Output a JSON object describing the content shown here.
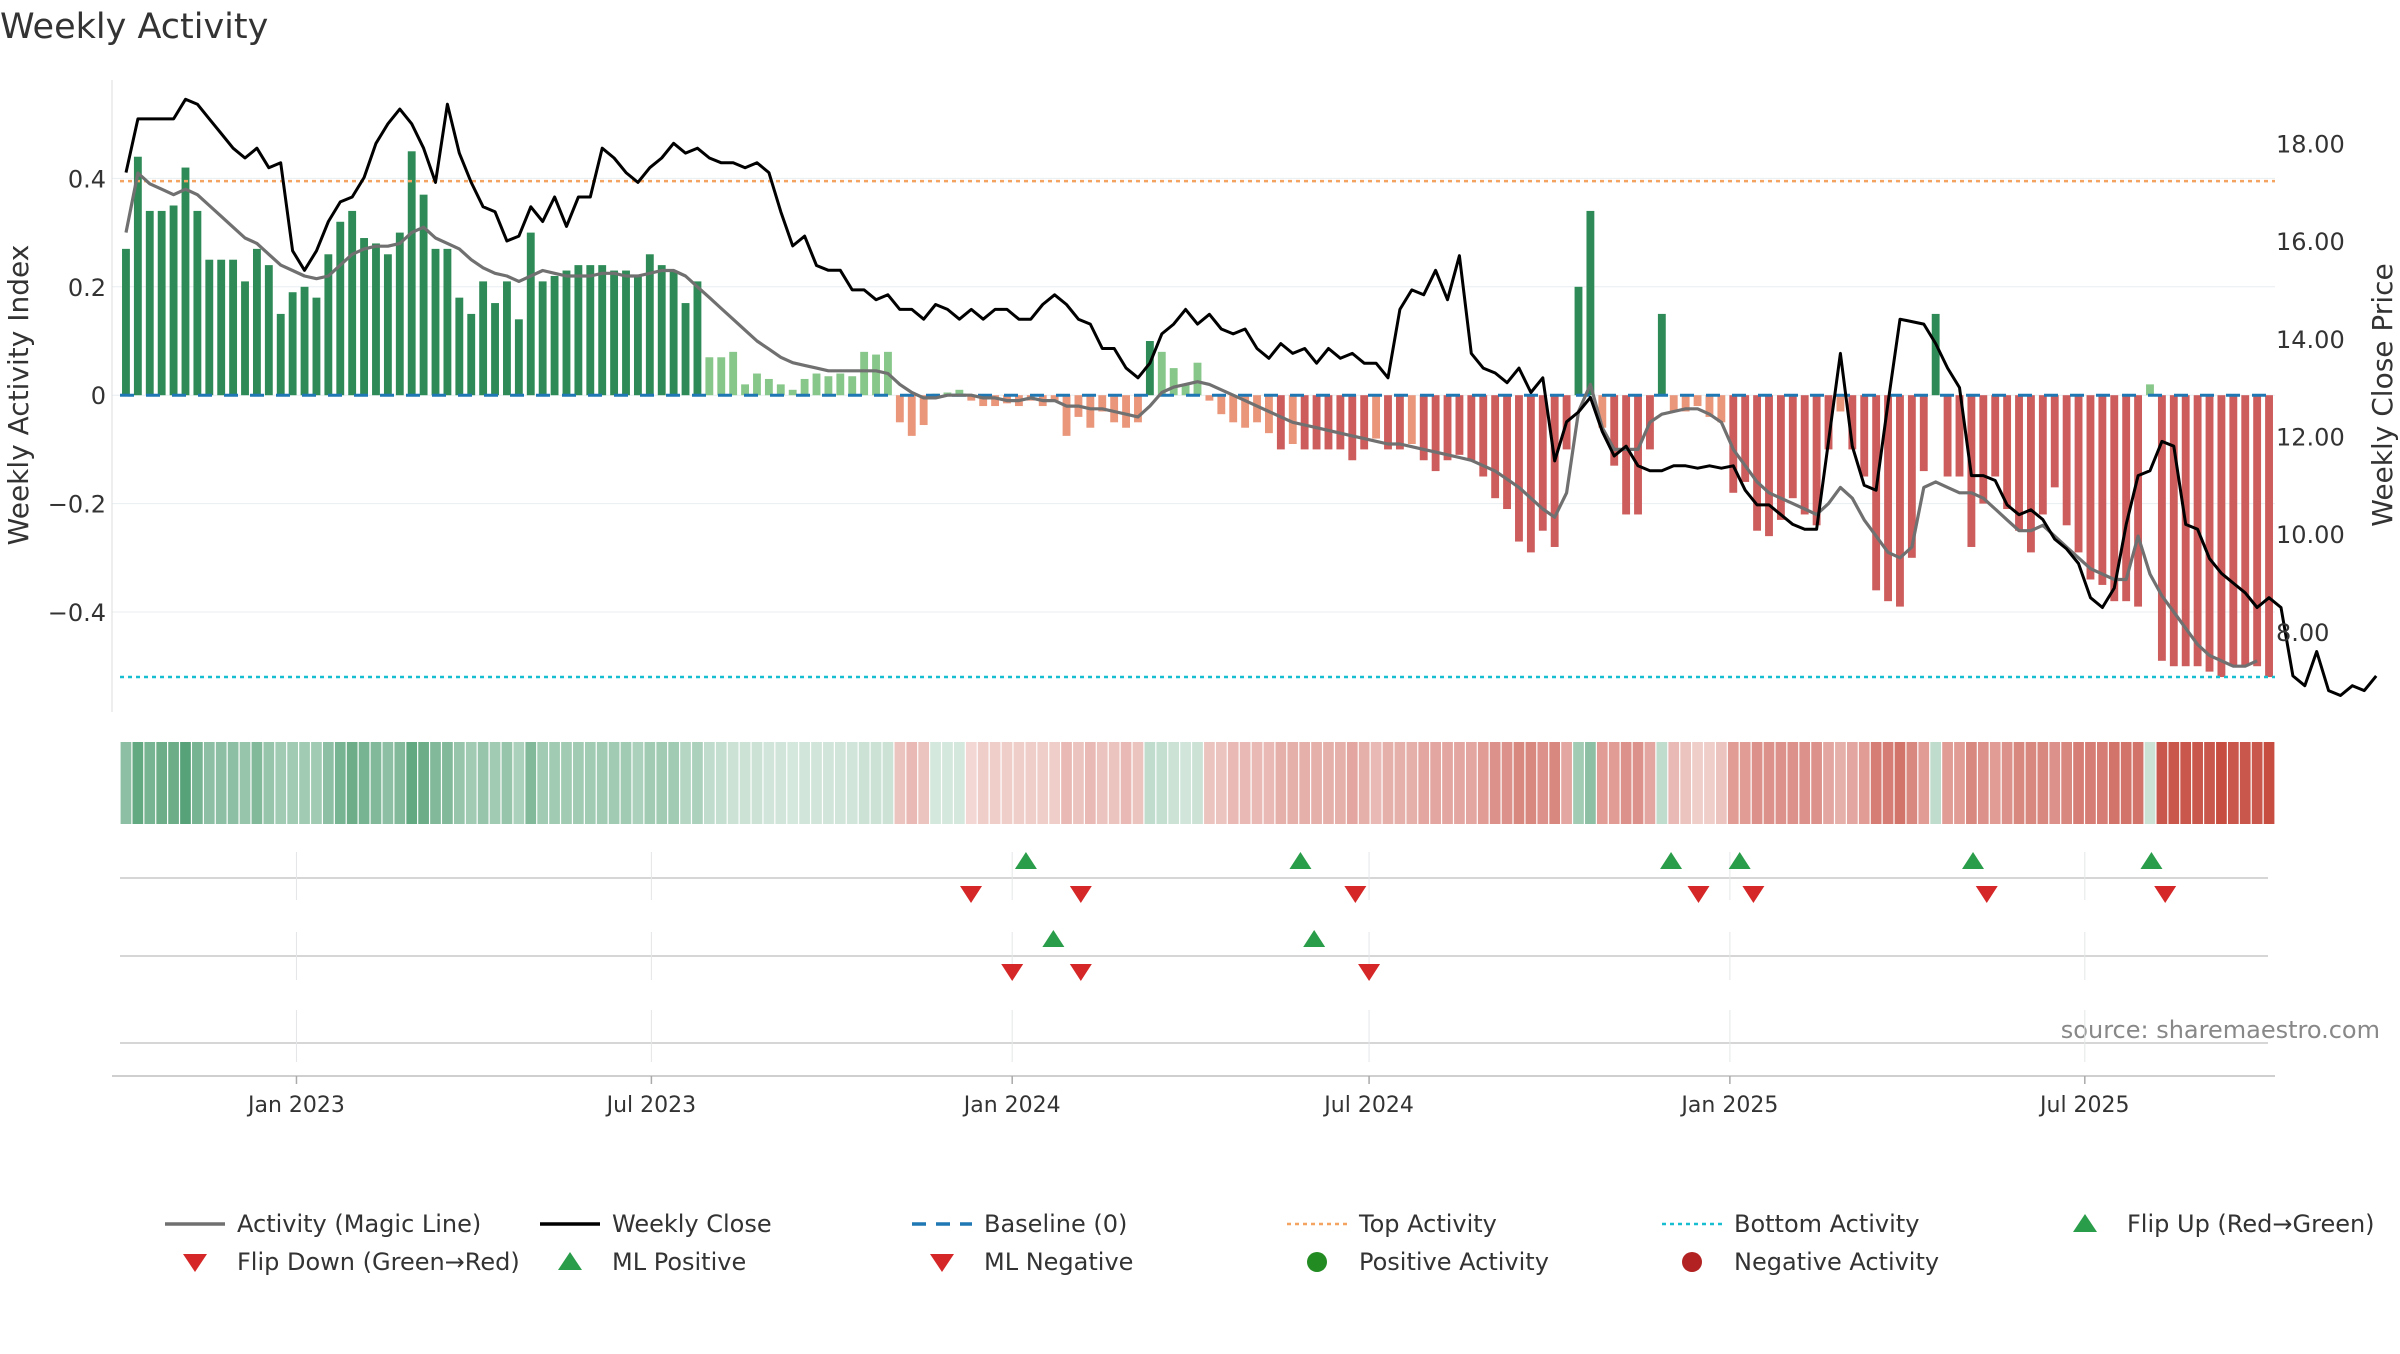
{
  "chart_data": {
    "type": "bar",
    "title": "Weekly Activity",
    "ylabel_left": "Weekly Activity Index",
    "ylabel_right": "Weekly Close Price",
    "source_note": "source: sharemaestro.com",
    "x_range": [
      "2022-10-03",
      "2025-10-06"
    ],
    "ylim_left": [
      -0.59,
      0.6
    ],
    "ylim_right": [
      6.3,
      19.5
    ],
    "left_ticks": [
      {
        "value": 0.4,
        "label": "0.4"
      },
      {
        "value": 0.2,
        "label": "0.2"
      },
      {
        "value": 0,
        "label": "0"
      },
      {
        "value": -0.2,
        "label": "−0.2"
      },
      {
        "value": -0.4,
        "label": "−0.4"
      }
    ],
    "right_ticks": [
      {
        "value": 18,
        "label": "18.00"
      },
      {
        "value": 16,
        "label": "16.00"
      },
      {
        "value": 14,
        "label": "14.00"
      },
      {
        "value": 12,
        "label": "12.00"
      },
      {
        "value": 10,
        "label": "10.00"
      },
      {
        "value": 8,
        "label": "8.00"
      }
    ],
    "x_ticks": [
      {
        "date": "2023-01-01",
        "label": "Jan 2023"
      },
      {
        "date": "2023-07-01",
        "label": "Jul 2023"
      },
      {
        "date": "2024-01-01",
        "label": "Jan 2024"
      },
      {
        "date": "2024-07-01",
        "label": "Jul 2024"
      },
      {
        "date": "2025-01-01",
        "label": "Jan 2025"
      },
      {
        "date": "2025-07-01",
        "label": "Jul 2025"
      }
    ],
    "top_activity": 0.395,
    "bottom_activity": -0.52,
    "grid": true,
    "colors": {
      "strong_positive": "#2e8b57",
      "weak_positive": "#88c78a",
      "strong_negative": "#cd5c5c",
      "weak_negative": "#e9967a",
      "magic_line": "#707070",
      "close_line": "#000000",
      "baseline": "#1f77b4",
      "top_line": "#f4a460",
      "bottom_line": "#17becf",
      "flip_up": "#2a9d4a",
      "flip_down": "#d62728",
      "positive_activity": "#228b22",
      "negative_activity": "#b22222"
    },
    "activity_values": [
      0.27,
      0.44,
      0.34,
      0.34,
      0.35,
      0.42,
      0.34,
      0.25,
      0.25,
      0.25,
      0.21,
      0.27,
      0.24,
      0.15,
      0.19,
      0.2,
      0.18,
      0.26,
      0.32,
      0.34,
      0.29,
      0.28,
      0.26,
      0.3,
      0.45,
      0.37,
      0.27,
      0.27,
      0.18,
      0.15,
      0.21,
      0.17,
      0.21,
      0.14,
      0.3,
      0.21,
      0.22,
      0.23,
      0.24,
      0.24,
      0.24,
      0.23,
      0.23,
      0.22,
      0.26,
      0.24,
      0.23,
      0.17,
      0.21,
      0.07,
      0.07,
      0.08,
      0.02,
      0.04,
      0.03,
      0.02,
      0.01,
      0.03,
      0.04,
      0.035,
      0.04,
      0.035,
      0.08,
      0.075,
      0.08,
      -0.05,
      -0.075,
      -0.055,
      0.0,
      0.005,
      0.01,
      -0.01,
      -0.02,
      -0.02,
      -0.015,
      -0.02,
      -0.01,
      -0.02,
      -0.01,
      -0.075,
      -0.04,
      -0.06,
      -0.03,
      -0.05,
      -0.06,
      -0.05,
      0.1,
      0.08,
      0.05,
      0.02,
      0.06,
      -0.01,
      -0.035,
      -0.05,
      -0.06,
      -0.05,
      -0.07,
      -0.1,
      -0.09,
      -0.1,
      -0.1,
      -0.1,
      -0.1,
      -0.12,
      -0.1,
      -0.08,
      -0.1,
      -0.1,
      -0.09,
      -0.12,
      -0.14,
      -0.12,
      -0.11,
      -0.12,
      -0.15,
      -0.19,
      -0.21,
      -0.27,
      -0.29,
      -0.25,
      -0.28,
      -0.1,
      0.2,
      0.34,
      -0.06,
      -0.13,
      -0.22,
      -0.22,
      -0.1,
      0.15,
      -0.03,
      -0.03,
      -0.02,
      -0.04,
      -0.05,
      -0.18,
      -0.16,
      -0.25,
      -0.26,
      -0.23,
      -0.19,
      -0.22,
      -0.24,
      -0.1,
      -0.03,
      -0.1,
      -0.15,
      -0.36,
      -0.38,
      -0.39,
      -0.3,
      -0.14,
      0.15,
      -0.15,
      -0.15,
      -0.28,
      -0.2,
      -0.15,
      -0.21,
      -0.25,
      -0.29,
      -0.22,
      -0.17,
      -0.24,
      -0.29,
      -0.34,
      -0.35,
      -0.38,
      -0.38,
      -0.39,
      0.02,
      -0.49,
      -0.5,
      -0.5,
      -0.5,
      -0.51,
      -0.52,
      -0.5,
      -0.5,
      -0.5,
      -0.52
    ],
    "magic_line_values": [
      0.3,
      0.41,
      0.39,
      0.38,
      0.37,
      0.38,
      0.37,
      0.35,
      0.33,
      0.31,
      0.29,
      0.28,
      0.26,
      0.24,
      0.23,
      0.22,
      0.215,
      0.22,
      0.24,
      0.26,
      0.27,
      0.275,
      0.275,
      0.28,
      0.3,
      0.31,
      0.29,
      0.28,
      0.27,
      0.25,
      0.235,
      0.225,
      0.22,
      0.21,
      0.22,
      0.23,
      0.225,
      0.22,
      0.22,
      0.22,
      0.225,
      0.225,
      0.22,
      0.22,
      0.225,
      0.23,
      0.23,
      0.22,
      0.2,
      0.18,
      0.16,
      0.14,
      0.12,
      0.1,
      0.085,
      0.07,
      0.06,
      0.055,
      0.05,
      0.045,
      0.045,
      0.045,
      0.045,
      0.045,
      0.04,
      0.02,
      0.005,
      -0.005,
      -0.005,
      0.0,
      0.0,
      0.0,
      -0.005,
      -0.005,
      -0.01,
      -0.01,
      -0.005,
      -0.01,
      -0.01,
      -0.02,
      -0.02,
      -0.025,
      -0.025,
      -0.03,
      -0.035,
      -0.04,
      -0.02,
      0.005,
      0.015,
      0.02,
      0.025,
      0.02,
      0.01,
      0.0,
      -0.01,
      -0.02,
      -0.03,
      -0.04,
      -0.05,
      -0.055,
      -0.06,
      -0.065,
      -0.07,
      -0.075,
      -0.08,
      -0.085,
      -0.09,
      -0.09,
      -0.095,
      -0.1,
      -0.105,
      -0.11,
      -0.115,
      -0.12,
      -0.13,
      -0.14,
      -0.155,
      -0.17,
      -0.19,
      -0.21,
      -0.225,
      -0.18,
      -0.03,
      0.02,
      -0.06,
      -0.1,
      -0.1,
      -0.1,
      -0.05,
      -0.035,
      -0.03,
      -0.025,
      -0.025,
      -0.035,
      -0.05,
      -0.1,
      -0.13,
      -0.16,
      -0.18,
      -0.19,
      -0.2,
      -0.21,
      -0.22,
      -0.2,
      -0.17,
      -0.19,
      -0.23,
      -0.26,
      -0.29,
      -0.3,
      -0.28,
      -0.17,
      -0.16,
      -0.17,
      -0.18,
      -0.18,
      -0.19,
      -0.21,
      -0.23,
      -0.25,
      -0.25,
      -0.24,
      -0.26,
      -0.28,
      -0.3,
      -0.32,
      -0.33,
      -0.34,
      -0.34,
      -0.26,
      -0.33,
      -0.37,
      -0.4,
      -0.43,
      -0.46,
      -0.48,
      -0.49,
      -0.5,
      -0.5,
      -0.49
    ],
    "close_values": [
      17.4,
      18.5,
      18.5,
      18.5,
      18.5,
      18.9,
      18.8,
      18.5,
      18.2,
      17.9,
      17.7,
      17.9,
      17.5,
      17.6,
      15.8,
      15.4,
      15.8,
      16.4,
      16.8,
      16.9,
      17.3,
      18.0,
      18.4,
      18.7,
      18.4,
      17.9,
      17.2,
      18.8,
      17.8,
      17.2,
      16.7,
      16.6,
      16.0,
      16.1,
      16.7,
      16.4,
      16.9,
      16.3,
      16.9,
      16.9,
      17.9,
      17.7,
      17.4,
      17.2,
      17.5,
      17.7,
      18.0,
      17.8,
      17.9,
      17.7,
      17.6,
      17.6,
      17.5,
      17.6,
      17.4,
      16.6,
      15.9,
      16.1,
      15.5,
      15.4,
      15.4,
      15.0,
      15.0,
      14.8,
      14.9,
      14.6,
      14.6,
      14.4,
      14.7,
      14.6,
      14.4,
      14.6,
      14.4,
      14.6,
      14.6,
      14.4,
      14.4,
      14.7,
      14.9,
      14.7,
      14.4,
      14.3,
      13.8,
      13.8,
      13.4,
      13.2,
      13.5,
      14.1,
      14.3,
      14.6,
      14.3,
      14.5,
      14.2,
      14.1,
      14.2,
      13.8,
      13.6,
      13.9,
      13.7,
      13.8,
      13.5,
      13.8,
      13.6,
      13.7,
      13.5,
      13.5,
      13.2,
      14.6,
      15.0,
      14.9,
      15.4,
      14.8,
      15.7,
      13.7,
      13.4,
      13.3,
      13.1,
      13.4,
      12.9,
      13.2,
      11.5,
      12.3,
      12.5,
      12.8,
      12.1,
      11.6,
      11.8,
      11.4,
      11.3,
      11.3,
      11.4,
      11.4,
      11.35,
      11.4,
      11.35,
      11.4,
      10.9,
      10.6,
      10.6,
      10.4,
      10.2,
      10.1,
      10.1,
      11.9,
      13.7,
      11.8,
      11.0,
      10.9,
      12.7,
      14.4,
      14.35,
      14.3,
      13.9,
      13.4,
      13.0,
      11.2,
      11.2,
      11.1,
      10.6,
      10.4,
      10.5,
      10.3,
      9.9,
      9.7,
      9.4,
      8.7,
      8.5,
      8.9,
      10.2,
      11.2,
      11.3,
      11.9,
      11.8,
      10.2,
      10.1,
      9.5,
      9.2,
      9.0,
      8.8,
      8.5,
      8.7,
      8.5,
      7.1,
      6.9,
      7.6,
      6.8,
      6.7,
      6.9,
      6.8,
      7.1
    ],
    "heatmap_intensity": [
      0.55,
      0.75,
      0.65,
      0.7,
      0.7,
      0.8,
      0.65,
      0.55,
      0.55,
      0.55,
      0.5,
      0.6,
      0.5,
      0.45,
      0.45,
      0.45,
      0.45,
      0.55,
      0.65,
      0.7,
      0.65,
      0.6,
      0.55,
      0.6,
      0.75,
      0.7,
      0.6,
      0.6,
      0.5,
      0.45,
      0.5,
      0.45,
      0.5,
      0.4,
      0.6,
      0.45,
      0.45,
      0.45,
      0.45,
      0.45,
      0.45,
      0.45,
      0.45,
      0.4,
      0.45,
      0.45,
      0.45,
      0.35,
      0.4,
      0.3,
      0.28,
      0.25,
      0.25,
      0.25,
      0.22,
      0.22,
      0.2,
      0.22,
      0.22,
      0.22,
      0.22,
      0.22,
      0.25,
      0.25,
      0.25,
      0.3,
      0.35,
      0.3,
      0.2,
      0.2,
      0.2,
      0.2,
      0.25,
      0.25,
      0.25,
      0.25,
      0.25,
      0.25,
      0.25,
      0.35,
      0.3,
      0.35,
      0.3,
      0.3,
      0.35,
      0.3,
      0.3,
      0.28,
      0.25,
      0.22,
      0.25,
      0.3,
      0.3,
      0.35,
      0.35,
      0.35,
      0.35,
      0.4,
      0.4,
      0.4,
      0.4,
      0.4,
      0.4,
      0.45,
      0.4,
      0.35,
      0.4,
      0.4,
      0.4,
      0.45,
      0.45,
      0.45,
      0.45,
      0.45,
      0.5,
      0.55,
      0.55,
      0.6,
      0.6,
      0.55,
      0.6,
      0.45,
      0.45,
      0.55,
      0.5,
      0.5,
      0.55,
      0.55,
      0.45,
      0.3,
      0.35,
      0.3,
      0.25,
      0.25,
      0.3,
      0.5,
      0.5,
      0.55,
      0.55,
      0.55,
      0.55,
      0.55,
      0.55,
      0.45,
      0.4,
      0.45,
      0.5,
      0.65,
      0.65,
      0.7,
      0.6,
      0.5,
      0.3,
      0.5,
      0.5,
      0.6,
      0.55,
      0.5,
      0.55,
      0.6,
      0.6,
      0.6,
      0.55,
      0.6,
      0.65,
      0.65,
      0.65,
      0.7,
      0.7,
      0.7,
      0.25,
      0.85,
      0.85,
      0.85,
      0.85,
      0.85,
      0.9,
      0.85,
      0.85,
      0.85,
      0.9
    ],
    "flip_row1_up_dates": [
      "2024-01-08",
      "2024-05-27",
      "2024-12-02",
      "2025-01-06",
      "2025-05-05",
      "2025-08-04"
    ],
    "flip_row1_down_dates": [
      "2023-12-11",
      "2024-02-05",
      "2024-06-24",
      "2024-12-16",
      "2025-01-13",
      "2025-05-12",
      "2025-08-11"
    ],
    "ml_row2_positive_dates": [
      "2024-01-22",
      "2024-06-03"
    ],
    "ml_row2_negative_dates": [
      "2024-01-01",
      "2024-02-05",
      "2024-07-01"
    ],
    "legend": [
      {
        "label": "Activity (Magic Line)",
        "kind": "line-solid-gray"
      },
      {
        "label": "Weekly Close",
        "kind": "line-solid-black"
      },
      {
        "label": "Baseline (0)",
        "kind": "line-dashed-blue"
      },
      {
        "label": "Top Activity",
        "kind": "line-dotted-orange"
      },
      {
        "label": "Bottom Activity",
        "kind": "line-dotted-cyan"
      },
      {
        "label": "Flip Up (Red→Green)",
        "kind": "triangle-up-green"
      },
      {
        "label": "Flip Down (Green→Red)",
        "kind": "triangle-down-red"
      },
      {
        "label": "ML Positive",
        "kind": "triangle-up-green"
      },
      {
        "label": "ML Negative",
        "kind": "triangle-down-red"
      },
      {
        "label": "Positive Activity",
        "kind": "dot-green"
      },
      {
        "label": "Negative Activity",
        "kind": "dot-red"
      }
    ]
  }
}
